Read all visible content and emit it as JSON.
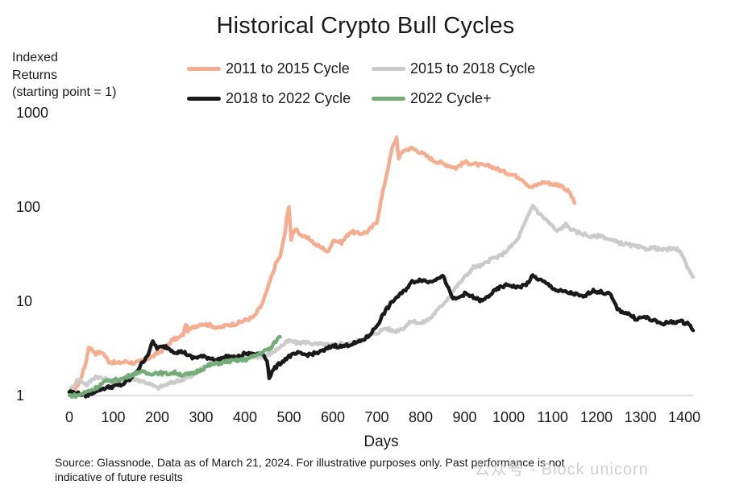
{
  "chart_data": {
    "type": "line",
    "title": "Historical Crypto Bull Cycles",
    "ylabel_lines": [
      "Indexed",
      "Returns",
      "(starting point = 1)"
    ],
    "xlabel": "Days",
    "yscale": "log",
    "ylim": [
      1,
      1000
    ],
    "xlim": [
      0,
      1420
    ],
    "y_ticks": [
      1,
      10,
      100,
      1000
    ],
    "y_tick_labels": [
      "1",
      "10",
      "100",
      "1000"
    ],
    "x_ticks": [
      0,
      100,
      200,
      300,
      400,
      500,
      600,
      700,
      800,
      900,
      1000,
      1100,
      1200,
      1300,
      1400
    ],
    "x_tick_labels": [
      "0",
      "100",
      "200",
      "300",
      "400",
      "500",
      "600",
      "700",
      "800",
      "900",
      "1000",
      "1100",
      "1200",
      "1300",
      "1400"
    ],
    "series": [
      {
        "name": "2011 to 2015 Cycle",
        "color": "#f5ac8f",
        "points": [
          [
            0,
            1.05
          ],
          [
            20,
            1.3
          ],
          [
            35,
            2.0
          ],
          [
            45,
            3.3
          ],
          [
            60,
            2.8
          ],
          [
            75,
            2.9
          ],
          [
            90,
            2.3
          ],
          [
            110,
            2.2
          ],
          [
            130,
            2.3
          ],
          [
            150,
            2.2
          ],
          [
            170,
            2.4
          ],
          [
            190,
            2.6
          ],
          [
            210,
            3.0
          ],
          [
            235,
            3.9
          ],
          [
            250,
            4.1
          ],
          [
            260,
            4.5
          ],
          [
            265,
            5.8
          ],
          [
            270,
            4.9
          ],
          [
            280,
            5.2
          ],
          [
            300,
            5.8
          ],
          [
            320,
            5.6
          ],
          [
            340,
            5.2
          ],
          [
            360,
            5.6
          ],
          [
            380,
            5.8
          ],
          [
            400,
            6.3
          ],
          [
            420,
            6.8
          ],
          [
            440,
            9.5
          ],
          [
            450,
            13
          ],
          [
            460,
            18
          ],
          [
            470,
            25
          ],
          [
            480,
            30
          ],
          [
            490,
            50
          ],
          [
            495,
            75
          ],
          [
            500,
            105
          ],
          [
            505,
            45
          ],
          [
            515,
            60
          ],
          [
            525,
            52
          ],
          [
            535,
            48
          ],
          [
            550,
            45
          ],
          [
            560,
            40
          ],
          [
            570,
            38
          ],
          [
            580,
            36
          ],
          [
            590,
            33
          ],
          [
            600,
            45
          ],
          [
            620,
            42
          ],
          [
            640,
            55
          ],
          [
            660,
            52
          ],
          [
            680,
            55
          ],
          [
            700,
            70
          ],
          [
            720,
            200
          ],
          [
            735,
            420
          ],
          [
            745,
            550
          ],
          [
            750,
            320
          ],
          [
            760,
            400
          ],
          [
            780,
            420
          ],
          [
            800,
            380
          ],
          [
            830,
            310
          ],
          [
            860,
            280
          ],
          [
            880,
            260
          ],
          [
            900,
            300
          ],
          [
            930,
            280
          ],
          [
            960,
            270
          ],
          [
            990,
            235
          ],
          [
            1010,
            220
          ],
          [
            1030,
            200
          ],
          [
            1050,
            160
          ],
          [
            1080,
            185
          ],
          [
            1100,
            175
          ],
          [
            1120,
            170
          ],
          [
            1140,
            140
          ],
          [
            1150,
            110
          ]
        ]
      },
      {
        "name": "2015 to 2018 Cycle",
        "color": "#cbcbcb",
        "points": [
          [
            0,
            1.1
          ],
          [
            20,
            1.5
          ],
          [
            40,
            1.3
          ],
          [
            60,
            1.6
          ],
          [
            80,
            1.5
          ],
          [
            100,
            1.4
          ],
          [
            120,
            1.45
          ],
          [
            150,
            1.5
          ],
          [
            180,
            1.35
          ],
          [
            200,
            1.2
          ],
          [
            220,
            1.3
          ],
          [
            240,
            1.4
          ],
          [
            260,
            1.5
          ],
          [
            280,
            1.6
          ],
          [
            300,
            1.9
          ],
          [
            320,
            2.2
          ],
          [
            340,
            2.4
          ],
          [
            360,
            2.5
          ],
          [
            380,
            2.6
          ],
          [
            400,
            2.5
          ],
          [
            420,
            2.6
          ],
          [
            440,
            2.6
          ],
          [
            460,
            2.8
          ],
          [
            480,
            3.3
          ],
          [
            500,
            3.8
          ],
          [
            520,
            3.6
          ],
          [
            540,
            3.7
          ],
          [
            560,
            3.5
          ],
          [
            580,
            3.5
          ],
          [
            600,
            3.4
          ],
          [
            620,
            3.6
          ],
          [
            640,
            3.5
          ],
          [
            660,
            3.8
          ],
          [
            680,
            4.3
          ],
          [
            700,
            4.6
          ],
          [
            720,
            5.2
          ],
          [
            740,
            4.8
          ],
          [
            760,
            5.2
          ],
          [
            780,
            6.2
          ],
          [
            800,
            5.8
          ],
          [
            820,
            6.5
          ],
          [
            840,
            8.2
          ],
          [
            860,
            10.5
          ],
          [
            880,
            14
          ],
          [
            900,
            18
          ],
          [
            920,
            23
          ],
          [
            940,
            24
          ],
          [
            960,
            28
          ],
          [
            980,
            30
          ],
          [
            1000,
            36
          ],
          [
            1020,
            45
          ],
          [
            1040,
            72
          ],
          [
            1055,
            105
          ],
          [
            1070,
            85
          ],
          [
            1090,
            70
          ],
          [
            1110,
            55
          ],
          [
            1130,
            65
          ],
          [
            1150,
            55
          ],
          [
            1170,
            52
          ],
          [
            1190,
            48
          ],
          [
            1210,
            50
          ],
          [
            1230,
            45
          ],
          [
            1250,
            42
          ],
          [
            1270,
            40
          ],
          [
            1290,
            38
          ],
          [
            1310,
            36
          ],
          [
            1330,
            37
          ],
          [
            1350,
            35
          ],
          [
            1370,
            36
          ],
          [
            1390,
            35
          ],
          [
            1400,
            27
          ],
          [
            1410,
            22
          ],
          [
            1420,
            18
          ]
        ]
      },
      {
        "name": "2018 to 2022 Cycle",
        "color": "#1a1a1a",
        "points": [
          [
            0,
            1.1
          ],
          [
            20,
            1.05
          ],
          [
            40,
            1.0
          ],
          [
            60,
            1.12
          ],
          [
            80,
            1.2
          ],
          [
            100,
            1.25
          ],
          [
            120,
            1.3
          ],
          [
            140,
            1.5
          ],
          [
            160,
            2.0
          ],
          [
            180,
            2.8
          ],
          [
            190,
            3.7
          ],
          [
            200,
            3.2
          ],
          [
            220,
            3.3
          ],
          [
            240,
            2.9
          ],
          [
            260,
            2.9
          ],
          [
            280,
            2.5
          ],
          [
            300,
            2.6
          ],
          [
            320,
            2.5
          ],
          [
            340,
            2.4
          ],
          [
            360,
            2.6
          ],
          [
            380,
            2.5
          ],
          [
            400,
            2.8
          ],
          [
            420,
            2.7
          ],
          [
            440,
            2.8
          ],
          [
            450,
            2.4
          ],
          [
            455,
            1.55
          ],
          [
            465,
            1.9
          ],
          [
            480,
            2.2
          ],
          [
            500,
            2.6
          ],
          [
            520,
            2.8
          ],
          [
            540,
            2.7
          ],
          [
            560,
            2.8
          ],
          [
            580,
            3.0
          ],
          [
            600,
            3.4
          ],
          [
            620,
            3.3
          ],
          [
            640,
            3.5
          ],
          [
            660,
            3.7
          ],
          [
            680,
            4.2
          ],
          [
            700,
            5.5
          ],
          [
            720,
            8.0
          ],
          [
            740,
            10.5
          ],
          [
            760,
            12.5
          ],
          [
            780,
            16
          ],
          [
            800,
            17
          ],
          [
            820,
            16
          ],
          [
            840,
            18
          ],
          [
            850,
            18.5
          ],
          [
            860,
            15
          ],
          [
            870,
            11
          ],
          [
            880,
            10.5
          ],
          [
            900,
            12
          ],
          [
            920,
            11
          ],
          [
            940,
            10
          ],
          [
            960,
            12
          ],
          [
            980,
            14
          ],
          [
            1000,
            15
          ],
          [
            1020,
            14
          ],
          [
            1040,
            15
          ],
          [
            1055,
            18.5
          ],
          [
            1070,
            17
          ],
          [
            1090,
            15
          ],
          [
            1110,
            13
          ],
          [
            1130,
            12.5
          ],
          [
            1150,
            12
          ],
          [
            1170,
            11
          ],
          [
            1190,
            13
          ],
          [
            1210,
            12.5
          ],
          [
            1230,
            12
          ],
          [
            1250,
            8.0
          ],
          [
            1270,
            7.5
          ],
          [
            1290,
            6.5
          ],
          [
            1310,
            6.8
          ],
          [
            1330,
            6.2
          ],
          [
            1350,
            5.8
          ],
          [
            1370,
            6.0
          ],
          [
            1390,
            6.1
          ],
          [
            1410,
            5.8
          ],
          [
            1420,
            4.9
          ]
        ]
      },
      {
        "name": "2022 Cycle+",
        "color": "#74ac77",
        "points": [
          [
            0,
            1.0
          ],
          [
            20,
            1.0
          ],
          [
            40,
            1.1
          ],
          [
            60,
            1.2
          ],
          [
            80,
            1.4
          ],
          [
            100,
            1.45
          ],
          [
            120,
            1.5
          ],
          [
            140,
            1.65
          ],
          [
            160,
            1.8
          ],
          [
            180,
            1.7
          ],
          [
            200,
            1.75
          ],
          [
            220,
            1.7
          ],
          [
            240,
            1.75
          ],
          [
            260,
            1.65
          ],
          [
            280,
            1.7
          ],
          [
            300,
            1.9
          ],
          [
            320,
            2.1
          ],
          [
            340,
            2.2
          ],
          [
            360,
            2.3
          ],
          [
            380,
            2.35
          ],
          [
            400,
            2.4
          ],
          [
            420,
            2.6
          ],
          [
            440,
            2.9
          ],
          [
            460,
            3.2
          ],
          [
            470,
            3.8
          ],
          [
            480,
            4.2
          ]
        ]
      }
    ]
  },
  "footnote_lines": [
    "Source: Glassnode, Data as of March 21, 2024. For illustrative purposes only. Past performance is not",
    "indicative of future results"
  ],
  "watermark": "公众号 · Block unicorn"
}
